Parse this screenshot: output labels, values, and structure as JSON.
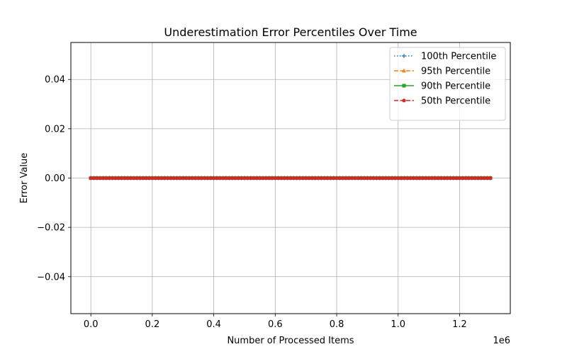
{
  "chart_data": {
    "type": "line",
    "title": "Underestimation Error Percentiles Over Time",
    "xlabel": "Number of Processed Items",
    "ylabel": "Error Value",
    "x_offset_label": "1e6",
    "xlim": [
      -0.065,
      1.365
    ],
    "ylim": [
      -0.055,
      0.055
    ],
    "x_ticks": [
      0.0,
      0.2,
      0.4,
      0.6,
      0.8,
      1.0,
      1.2
    ],
    "x_tick_labels": [
      "0.0",
      "0.2",
      "0.4",
      "0.6",
      "0.8",
      "1.0",
      "1.2"
    ],
    "y_ticks": [
      -0.04,
      -0.02,
      0.0,
      0.02,
      0.04
    ],
    "y_tick_labels": [
      "−0.04",
      "−0.02",
      "0.00",
      "0.02",
      "0.04"
    ],
    "grid": true,
    "legend_position": "top-right",
    "x_range": [
      0.0,
      1.3
    ],
    "x_step": 0.01,
    "series": [
      {
        "name": "100th Percentile",
        "color": "#1f77b4",
        "linestyle": "dotted",
        "marker": "plus",
        "y_constant": 0.0
      },
      {
        "name": "95th Percentile",
        "color": "#ff7f0e",
        "linestyle": "dashed",
        "marker": "triangle",
        "y_constant": 0.0
      },
      {
        "name": "90th Percentile",
        "color": "#2ca02c",
        "linestyle": "solid",
        "marker": "square",
        "y_constant": 0.0
      },
      {
        "name": "50th Percentile",
        "color": "#d62728",
        "linestyle": "dashed",
        "marker": "pentagon",
        "y_constant": 0.0
      }
    ]
  }
}
